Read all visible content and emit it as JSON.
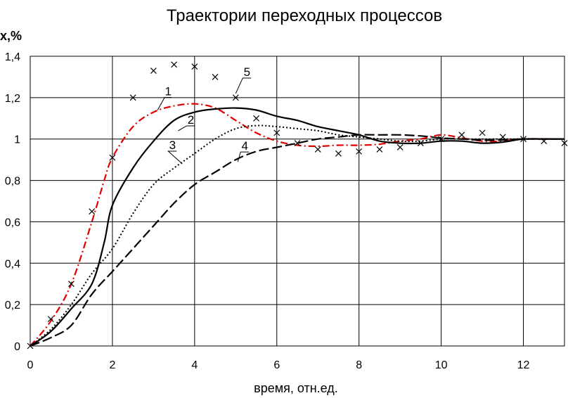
{
  "chart_data": {
    "type": "line",
    "title": "Траектории переходных процессов",
    "ylabel": "x,%",
    "xlabel": "время, отн.ед.",
    "xlim": [
      0,
      13
    ],
    "ylim": [
      0,
      1.4
    ],
    "xticks": [
      0,
      2,
      4,
      6,
      8,
      10,
      12
    ],
    "xtick_labels": [
      "0",
      "2",
      "4",
      "6",
      "8",
      "10",
      "12"
    ],
    "yticks": [
      0,
      0.2,
      0.4,
      0.6,
      0.8,
      1.0,
      1.2,
      1.4
    ],
    "ytick_labels": [
      "0",
      "0,2",
      "0,4",
      "0,6",
      "0,8",
      "1",
      "1,2",
      "1,4"
    ],
    "grid": true,
    "series": [
      {
        "name": "1",
        "color": "#e00000",
        "style": "dash-dot",
        "x": [
          0,
          0.5,
          1.0,
          1.5,
          1.8,
          2.0,
          2.5,
          3.0,
          3.5,
          4.0,
          4.5,
          5.0,
          5.5,
          6.0,
          6.5,
          7.0,
          7.5,
          8.0,
          8.5,
          9.0,
          9.5,
          10.0,
          10.5,
          11.0,
          11.5,
          12.0,
          13.0
        ],
        "y": [
          0,
          0.12,
          0.3,
          0.6,
          0.8,
          0.91,
          1.06,
          1.13,
          1.16,
          1.17,
          1.15,
          1.09,
          1.03,
          0.99,
          0.97,
          0.965,
          0.97,
          0.97,
          0.975,
          0.99,
          1.0,
          1.02,
          1.005,
          0.99,
          0.99,
          1.0,
          1.0
        ]
      },
      {
        "name": "2",
        "color": "#000000",
        "style": "solid",
        "x": [
          0,
          0.5,
          1.0,
          1.5,
          1.8,
          2.0,
          2.5,
          3.0,
          3.5,
          4.0,
          4.5,
          5.0,
          5.5,
          6.0,
          6.5,
          7.0,
          7.5,
          8.0,
          8.5,
          9.0,
          9.5,
          10.0,
          10.5,
          11.0,
          11.5,
          12.0,
          12.5,
          13.0
        ],
        "y": [
          0,
          0.07,
          0.18,
          0.3,
          0.5,
          0.68,
          0.86,
          0.99,
          1.09,
          1.13,
          1.145,
          1.15,
          1.14,
          1.11,
          1.09,
          1.06,
          1.04,
          1.02,
          0.99,
          0.98,
          0.98,
          0.99,
          0.99,
          0.98,
          0.985,
          1.0,
          1.0,
          1.0
        ]
      },
      {
        "name": "3",
        "color": "#000000",
        "style": "dotted",
        "x": [
          0,
          0.5,
          1.0,
          1.5,
          2.0,
          2.5,
          3.0,
          3.5,
          4.0,
          4.5,
          5.0,
          5.5,
          6.0,
          6.5,
          7.0,
          7.5,
          8.0,
          8.5,
          9.0,
          9.5,
          10.0,
          10.5,
          11.0,
          11.5,
          12.0,
          13.0
        ],
        "y": [
          0,
          0.08,
          0.2,
          0.35,
          0.47,
          0.64,
          0.78,
          0.86,
          0.93,
          1.0,
          1.05,
          1.065,
          1.06,
          1.05,
          1.04,
          1.02,
          1.01,
          1.0,
          0.99,
          0.99,
          1.0,
          1.0,
          1.0,
          1.0,
          1.0,
          1.0
        ]
      },
      {
        "name": "4",
        "color": "#000000",
        "style": "dashed",
        "x": [
          0,
          0.5,
          1.0,
          1.5,
          2.0,
          2.5,
          3.0,
          3.5,
          4.0,
          4.5,
          5.0,
          5.5,
          6.0,
          6.5,
          7.0,
          7.5,
          8.0,
          8.5,
          9.0,
          9.5,
          10.0,
          10.5,
          11.0,
          11.5,
          12.0,
          13.0
        ],
        "y": [
          0,
          0.04,
          0.1,
          0.25,
          0.36,
          0.47,
          0.58,
          0.69,
          0.78,
          0.84,
          0.9,
          0.94,
          0.96,
          0.98,
          1.0,
          1.01,
          1.02,
          1.02,
          1.02,
          1.015,
          1.005,
          1.0,
          0.995,
          0.995,
          1.0,
          1.0
        ]
      },
      {
        "name": "5",
        "color": "#000000",
        "style": "markers-x",
        "x": [
          0,
          0.5,
          1.0,
          1.5,
          2.0,
          2.5,
          3.0,
          3.5,
          4.0,
          4.5,
          5.0,
          5.5,
          6.0,
          6.5,
          7.0,
          7.5,
          8.0,
          8.5,
          9.0,
          9.5,
          10.0,
          10.5,
          11.0,
          11.5,
          12.0,
          12.5,
          13.0
        ],
        "y": [
          0,
          0.13,
          0.3,
          0.65,
          0.91,
          1.2,
          1.33,
          1.36,
          1.35,
          1.3,
          1.2,
          1.1,
          1.03,
          0.98,
          0.95,
          0.93,
          0.94,
          0.95,
          0.96,
          0.98,
          1.0,
          1.02,
          1.03,
          1.01,
          1.0,
          0.99,
          0.98
        ]
      }
    ],
    "annotations": [
      {
        "text": "1",
        "series": "1",
        "at_x": 3.1,
        "at_y": 1.14
      },
      {
        "text": "2",
        "series": "2",
        "at_x": 3.6,
        "at_y": 1.04
      },
      {
        "text": "3",
        "series": "3",
        "at_x": 3.7,
        "at_y": 0.88
      },
      {
        "text": "4",
        "series": "4",
        "at_x": 5.05,
        "at_y": 0.89
      },
      {
        "text": "5",
        "series": "5",
        "at_x": 5.0,
        "at_y": 1.22
      }
    ]
  }
}
